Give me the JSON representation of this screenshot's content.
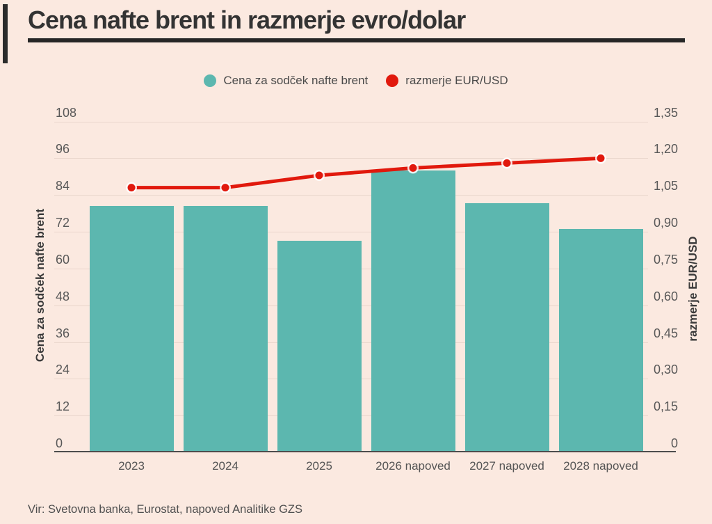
{
  "page": {
    "background": "#fbe9e0"
  },
  "header": {
    "title": "Cena nafte brent in razmerje evro/dolar"
  },
  "legend": [
    {
      "label": "Cena za sodček nafte brent",
      "color": "#5cb7af"
    },
    {
      "label": "razmerje EUR/USD",
      "color": "#e1190d"
    }
  ],
  "source": "Vir: Svetovna banka, Eurostat, napoved Analitike GZS",
  "chart_data": {
    "type": "bar",
    "subtype": "bar+line combo, dual axis",
    "title": "Cena nafte brent in razmerje evro/dolar",
    "categories": [
      "2023",
      "2024",
      "2025",
      "2026 napoved",
      "2027 napoved",
      "2028 napoved"
    ],
    "series": [
      {
        "name": "Cena za sodček nafte brent",
        "type": "bar",
        "axis": "left",
        "color": "#5cb7af",
        "values": [
          80.3,
          80.3,
          69,
          92,
          81.2,
          73
        ]
      },
      {
        "name": "razmerje EUR/USD",
        "type": "line",
        "axis": "right",
        "color": "#e1190d",
        "values": [
          1.08,
          1.08,
          1.13,
          1.16,
          1.18,
          1.2
        ]
      }
    ],
    "left_axis": {
      "label": "Cena za sodček nafte brent",
      "min": 0,
      "max": 108,
      "tick_step": 12,
      "ticks": [
        "108",
        "96",
        "84",
        "72",
        "60",
        "48",
        "36",
        "24",
        "12",
        "0"
      ]
    },
    "right_axis": {
      "label": "razmerje EUR/USD",
      "min": 0,
      "max": 1.35,
      "tick_step": 0.15,
      "ticks": [
        "1,35",
        "1,20",
        "1,05",
        "0,90",
        "0,75",
        "0,60",
        "0,45",
        "0,30",
        "0,15",
        "0"
      ]
    },
    "grid": true,
    "legend_position": "top-center"
  }
}
